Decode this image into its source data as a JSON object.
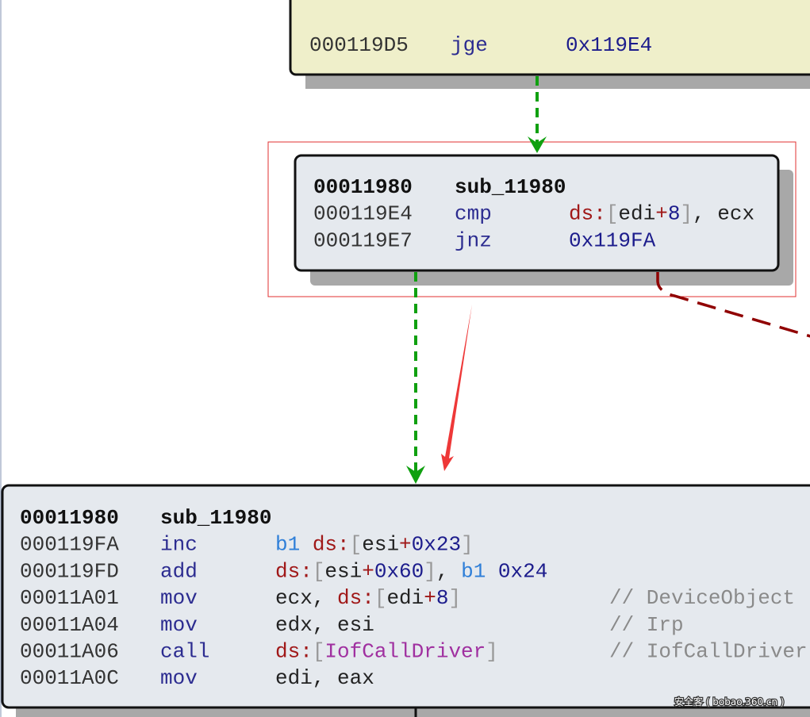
{
  "blocks": [
    {
      "lines": [
        {
          "address": "000119D5",
          "mnemonic": "jge",
          "operands": [
            {
              "text": "0x119E4",
              "color": "#1c1c8c"
            }
          ]
        }
      ]
    },
    {
      "header": {
        "address": "00011980",
        "name": "sub_11980"
      },
      "lines": [
        {
          "address": "000119E4",
          "mnemonic": "cmp",
          "operands": [
            {
              "text": "ds:",
              "color": "#a01818"
            },
            {
              "text": "[",
              "color": "#999999"
            },
            {
              "text": "edi",
              "color": "#222222"
            },
            {
              "text": "+",
              "color": "#a01818"
            },
            {
              "text": "8",
              "color": "#1c1c8c"
            },
            {
              "text": "]",
              "color": "#999999"
            },
            {
              "text": ", ecx",
              "color": "#222222"
            }
          ]
        },
        {
          "address": "000119E7",
          "mnemonic": "jnz",
          "operands": [
            {
              "text": "0x119FA",
              "color": "#1c1c8c"
            }
          ]
        }
      ]
    },
    {
      "header": {
        "address": "00011980",
        "name": "sub_11980"
      },
      "lines": [
        {
          "address": "000119FA",
          "mnemonic": "inc",
          "operands": [
            {
              "text": "b1 ",
              "color": "#2f7fd8"
            },
            {
              "text": "ds:",
              "color": "#a01818"
            },
            {
              "text": "[",
              "color": "#999999"
            },
            {
              "text": "esi",
              "color": "#222222"
            },
            {
              "text": "+",
              "color": "#a01818"
            },
            {
              "text": "0x23",
              "color": "#1c1c8c"
            },
            {
              "text": "]",
              "color": "#999999"
            }
          ]
        },
        {
          "address": "000119FD",
          "mnemonic": "add",
          "operands": [
            {
              "text": "ds:",
              "color": "#a01818"
            },
            {
              "text": "[",
              "color": "#999999"
            },
            {
              "text": "esi",
              "color": "#222222"
            },
            {
              "text": "+",
              "color": "#a01818"
            },
            {
              "text": "0x60",
              "color": "#1c1c8c"
            },
            {
              "text": "]",
              "color": "#999999"
            },
            {
              "text": ", ",
              "color": "#222222"
            },
            {
              "text": "b1 ",
              "color": "#2f7fd8"
            },
            {
              "text": "0x24",
              "color": "#1c1c8c"
            }
          ]
        },
        {
          "address": "00011A01",
          "mnemonic": "mov",
          "operands": [
            {
              "text": "ecx, ",
              "color": "#222222"
            },
            {
              "text": "ds:",
              "color": "#a01818"
            },
            {
              "text": "[",
              "color": "#999999"
            },
            {
              "text": "edi",
              "color": "#222222"
            },
            {
              "text": "+",
              "color": "#a01818"
            },
            {
              "text": "8",
              "color": "#1c1c8c"
            },
            {
              "text": "]",
              "color": "#999999"
            }
          ],
          "comment": "// DeviceObject"
        },
        {
          "address": "00011A04",
          "mnemonic": "mov",
          "operands": [
            {
              "text": "edx, esi",
              "color": "#222222"
            }
          ],
          "comment": "// Irp"
        },
        {
          "address": "00011A06",
          "mnemonic": "call",
          "operands": [
            {
              "text": "ds:",
              "color": "#a01818"
            },
            {
              "text": "[",
              "color": "#999999"
            },
            {
              "text": "IofCallDriver",
              "color": "#a030a0"
            },
            {
              "text": "]",
              "color": "#999999"
            }
          ],
          "comment": "// IofCallDriver"
        },
        {
          "address": "00011A0C",
          "mnemonic": "mov",
          "operands": [
            {
              "text": "edi, eax",
              "color": "#222222"
            }
          ]
        }
      ]
    }
  ],
  "watermark": "安全客 ( bobao.360.cn )"
}
